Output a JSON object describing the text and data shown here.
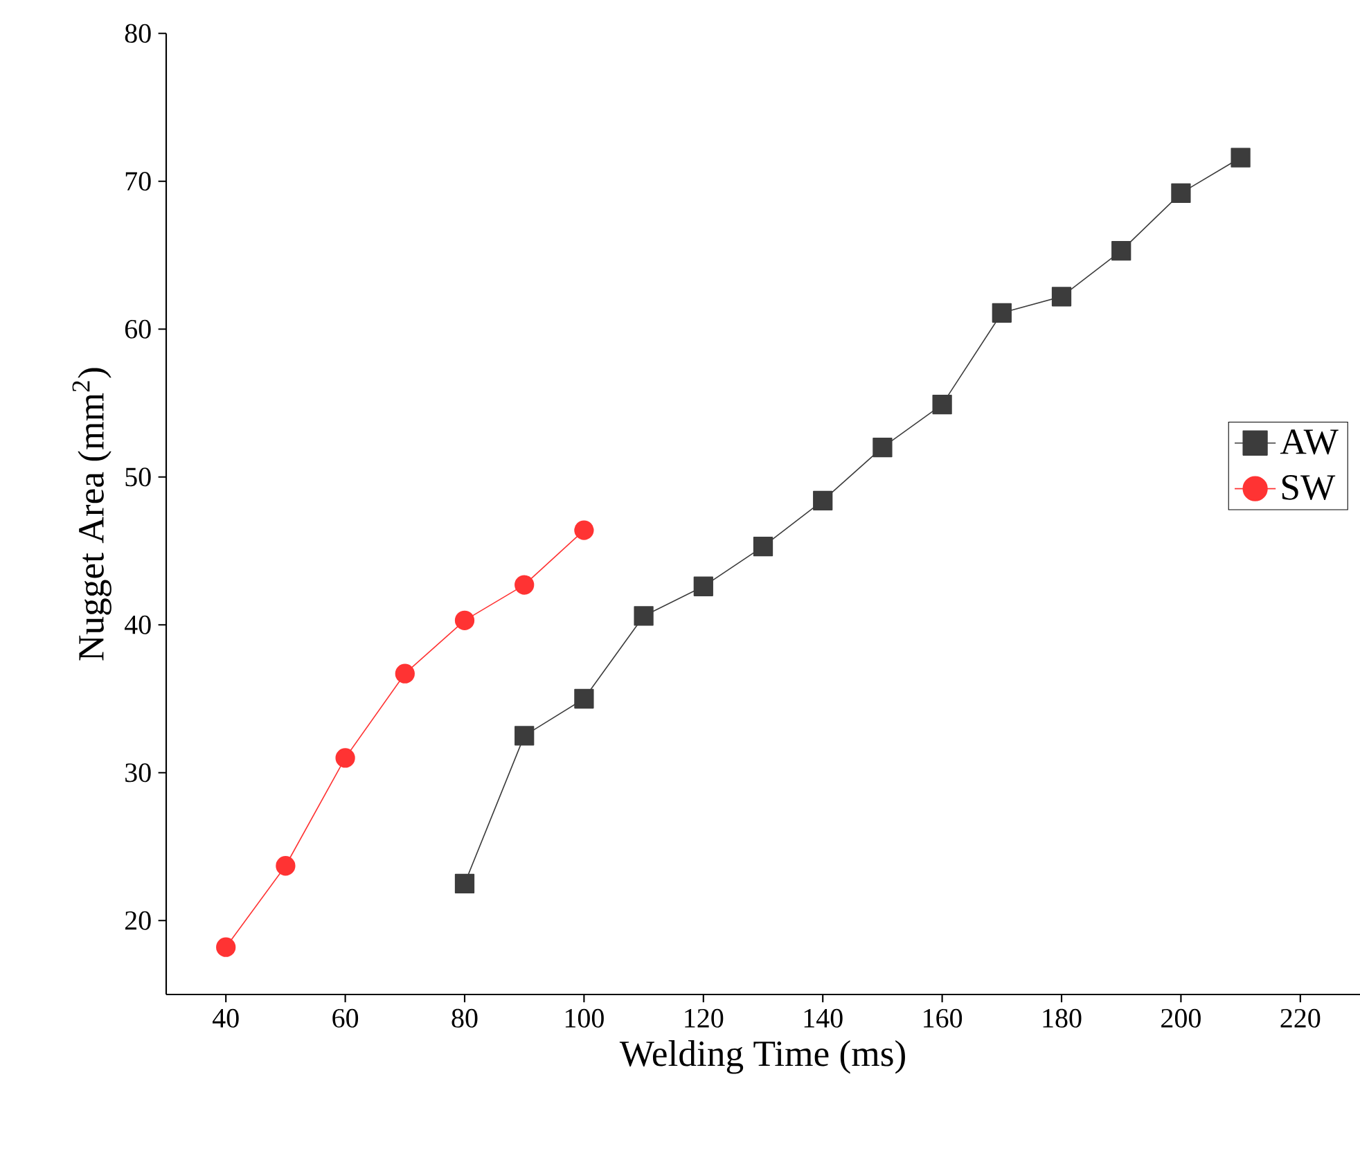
{
  "chart_data": {
    "type": "line",
    "xlabel": "Welding Time (ms)",
    "ylabel": "Nugget Area (mm$^{2}$)",
    "xlim": [
      30,
      230
    ],
    "ylim": [
      15,
      80
    ],
    "xticks": [
      40,
      60,
      80,
      100,
      120,
      140,
      160,
      180,
      200,
      220
    ],
    "yticks": [
      20,
      30,
      40,
      50,
      60,
      70,
      80
    ],
    "legend": "right",
    "grid": false,
    "series": [
      {
        "name": "AW",
        "color": "#3c3c3c",
        "marker": "square",
        "x": [
          80,
          90,
          100,
          110,
          120,
          130,
          140,
          150,
          160,
          170,
          180,
          190,
          200,
          210
        ],
        "values": [
          22.5,
          32.5,
          35.0,
          40.6,
          42.6,
          45.3,
          48.4,
          52.0,
          54.9,
          61.1,
          62.2,
          65.3,
          69.2,
          71.6
        ]
      },
      {
        "name": "SW",
        "color": "#ff3333",
        "marker": "circle",
        "x": [
          40,
          50,
          60,
          70,
          80,
          90,
          100
        ],
        "values": [
          18.2,
          23.7,
          31.0,
          36.7,
          40.3,
          42.7,
          46.4
        ]
      }
    ]
  }
}
